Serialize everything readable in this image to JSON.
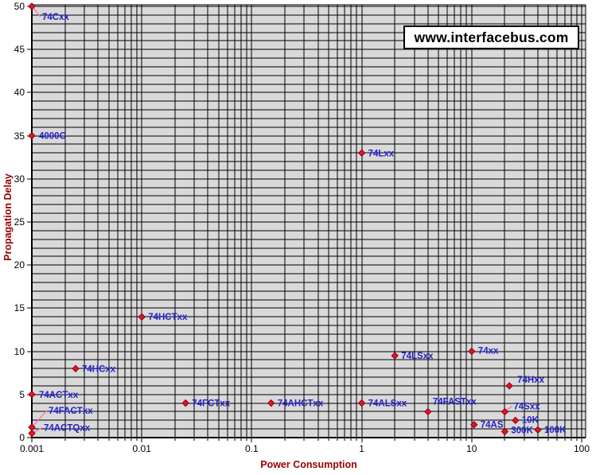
{
  "watermark": {
    "text": "www.interfacebus.com"
  },
  "chart_data": {
    "type": "scatter",
    "title": "",
    "xlabel": "Power Consumption",
    "ylabel": "Propagation Delay",
    "x_scale": "log",
    "xlim": [
      0.001,
      100
    ],
    "ylim": [
      0,
      50
    ],
    "x_ticks": [
      0.001,
      0.01,
      0.1,
      1,
      10,
      100
    ],
    "x_tick_labels": [
      "0.001",
      "0.01",
      "0.1",
      "1",
      "10",
      "100"
    ],
    "y_ticks": [
      0,
      5,
      10,
      15,
      20,
      25,
      30,
      35,
      40,
      45,
      50
    ],
    "grid": {
      "show": true,
      "h_step": 1,
      "x_log_minor": true
    },
    "legend": "none",
    "colors": {
      "plot_bg": "#d9d9d9",
      "grid": "#000000",
      "axis": "#000000",
      "marker": "#e8112d",
      "marker_edge": "#8b0000",
      "label": "#2222cc",
      "leader": "#ff6eb4",
      "axis_title": "#990000",
      "tick_label": "#000000",
      "watermark_bg": "#ffffff",
      "watermark_border": "#000000",
      "watermark_text": "#000000"
    },
    "series": [
      {
        "name": "logic-families",
        "points": [
          {
            "label": "74Cxx",
            "x": 0.001,
            "y": 50,
            "dx": 13,
            "dy": 13,
            "leader": true
          },
          {
            "label": "4000C",
            "x": 0.001,
            "y": 35,
            "dx": 9,
            "dy": 0
          },
          {
            "label": "74Lxx",
            "x": 1,
            "y": 33,
            "dx": 8,
            "dy": 0
          },
          {
            "label": "74HCTxx",
            "x": 0.01,
            "y": 14,
            "dx": 8,
            "dy": 0
          },
          {
            "label": "74xx",
            "x": 10,
            "y": 10,
            "dx": 8,
            "dy": -1
          },
          {
            "label": "74LSxx",
            "x": 2,
            "y": 9.5,
            "dx": 8,
            "dy": 0
          },
          {
            "label": "74HCxx",
            "x": 0.0025,
            "y": 8,
            "dx": 8,
            "dy": 0
          },
          {
            "label": "74Hxx",
            "x": 22,
            "y": 6,
            "dx": 10,
            "dy": -8
          },
          {
            "label": "74ACTxx",
            "x": 0.001,
            "y": 5,
            "dx": 9,
            "dy": 0
          },
          {
            "label": "74FCTxx",
            "x": 0.025,
            "y": 4,
            "dx": 8,
            "dy": 0
          },
          {
            "label": "74AHCTxx",
            "x": 0.15,
            "y": 4,
            "dx": 8,
            "dy": 0
          },
          {
            "label": "74ALSxx",
            "x": 1,
            "y": 4,
            "dx": 8,
            "dy": 0
          },
          {
            "label": "74FASTxx",
            "x": 4,
            "y": 3,
            "dx": 6,
            "dy": -13
          },
          {
            "label": "74Sxx",
            "x": 20,
            "y": 3,
            "dx": 11,
            "dy": -7,
            "leader": true
          },
          {
            "label": "10K",
            "x": 25,
            "y": 2,
            "dx": 8,
            "dy": -1
          },
          {
            "label": "74AS",
            "x": 10.5,
            "y": 1.5,
            "dx": 8,
            "dy": 0
          },
          {
            "label": "74FACTxx",
            "x": 0.001,
            "y": 1.2,
            "dx": 21,
            "dy": -21,
            "leader": true
          },
          {
            "label": "100K",
            "x": 40,
            "y": 0.9,
            "dx": 8,
            "dy": 0
          },
          {
            "label": "300K",
            "x": 20,
            "y": 0.7,
            "dx": 8,
            "dy": -2
          },
          {
            "label": "74ACTQxx",
            "x": 0.001,
            "y": 0.5,
            "dx": 15,
            "dy": -7,
            "leader": true
          }
        ]
      }
    ]
  }
}
